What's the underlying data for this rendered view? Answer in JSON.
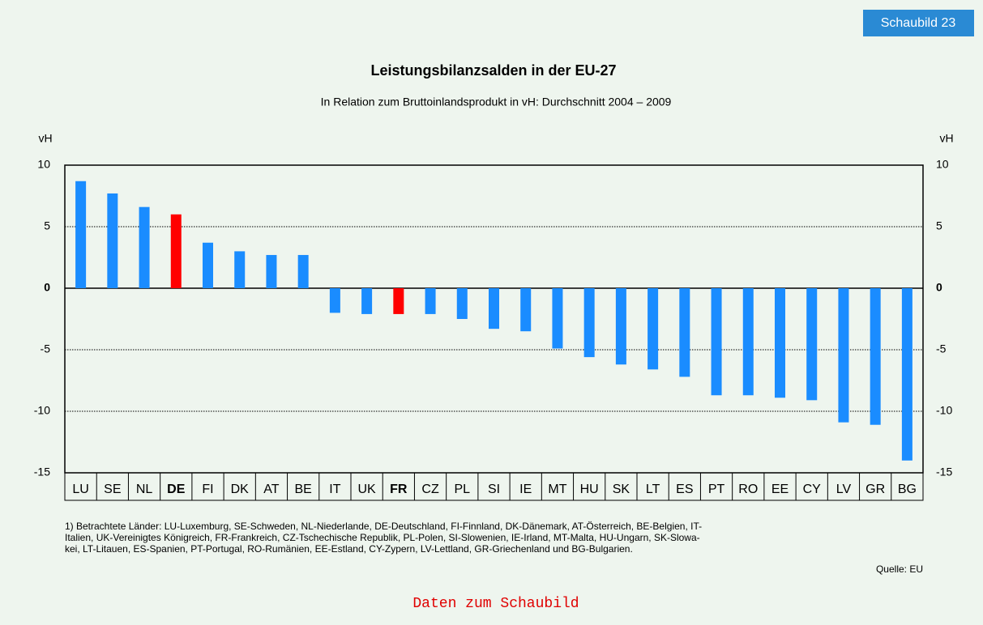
{
  "badge": "Schaubild 23",
  "chart_data": {
    "type": "bar",
    "title": "Leistungsbilanzsalden in der EU-27",
    "subtitle": "In Relation zum Bruttoinlandsprodukt in vH: Durchschnitt 2004 – 2009",
    "ylabel": "vH",
    "y2label": "vH",
    "categories": [
      "LU",
      "SE",
      "NL",
      "DE",
      "FI",
      "DK",
      "AT",
      "BE",
      "IT",
      "UK",
      "FR",
      "CZ",
      "PL",
      "SI",
      "IE",
      "MT",
      "HU",
      "SK",
      "LT",
      "ES",
      "PT",
      "RO",
      "EE",
      "CY",
      "LV",
      "GR",
      "BG"
    ],
    "values": [
      8.7,
      7.7,
      6.6,
      6.0,
      3.7,
      3.0,
      2.7,
      2.7,
      -2.0,
      -2.1,
      -2.1,
      -2.1,
      -2.5,
      -3.3,
      -3.5,
      -4.9,
      -5.6,
      -6.2,
      -6.6,
      -7.2,
      -8.7,
      -8.7,
      -8.9,
      -9.1,
      -10.9,
      -11.1,
      -14.0
    ],
    "color": "#1a8cff",
    "colors": [
      "#1a8cff",
      "#1a8cff",
      "#1a8cff",
      "#ff0000",
      "#1a8cff",
      "#1a8cff",
      "#1a8cff",
      "#1a8cff",
      "#1a8cff",
      "#1a8cff",
      "#ff0000",
      "#1a8cff",
      "#1a8cff",
      "#1a8cff",
      "#1a8cff",
      "#1a8cff",
      "#1a8cff",
      "#1a8cff",
      "#1a8cff",
      "#1a8cff",
      "#1a8cff",
      "#1a8cff",
      "#1a8cff",
      "#1a8cff",
      "#1a8cff",
      "#1a8cff",
      "#1a8cff"
    ],
    "ylim": [
      -15,
      10
    ],
    "yticks": [
      10,
      5,
      0,
      -5,
      -10,
      -15
    ],
    "y2lim": [
      -15,
      10
    ],
    "y2ticks": [
      10,
      5,
      0,
      -5,
      -10,
      -15
    ],
    "grid": true
  },
  "footnote": [
    "1) Betrachtete Länder: LU-Luxemburg, SE-Schweden, NL-Niederlande, DE-Deutschland, FI-Finnland, DK-Dänemark, AT-Österreich, BE-Belgien, IT-",
    "Italien, UK-Vereinigtes Königreich, FR-Frankreich, CZ-Tschechische Republik, PL-Polen, SI-Slowenien, IE-Irland, MT-Malta, HU-Ungarn, SK-Slowa-",
    "kei, LT-Litauen, ES-Spanien, PT-Portugal, RO-Rumänien, EE-Estland, CY-Zypern, LV-Lettland, GR-Griechenland und BG-Bulgarien."
  ],
  "source": "Quelle: EU",
  "link": "Daten zum Schaubild"
}
